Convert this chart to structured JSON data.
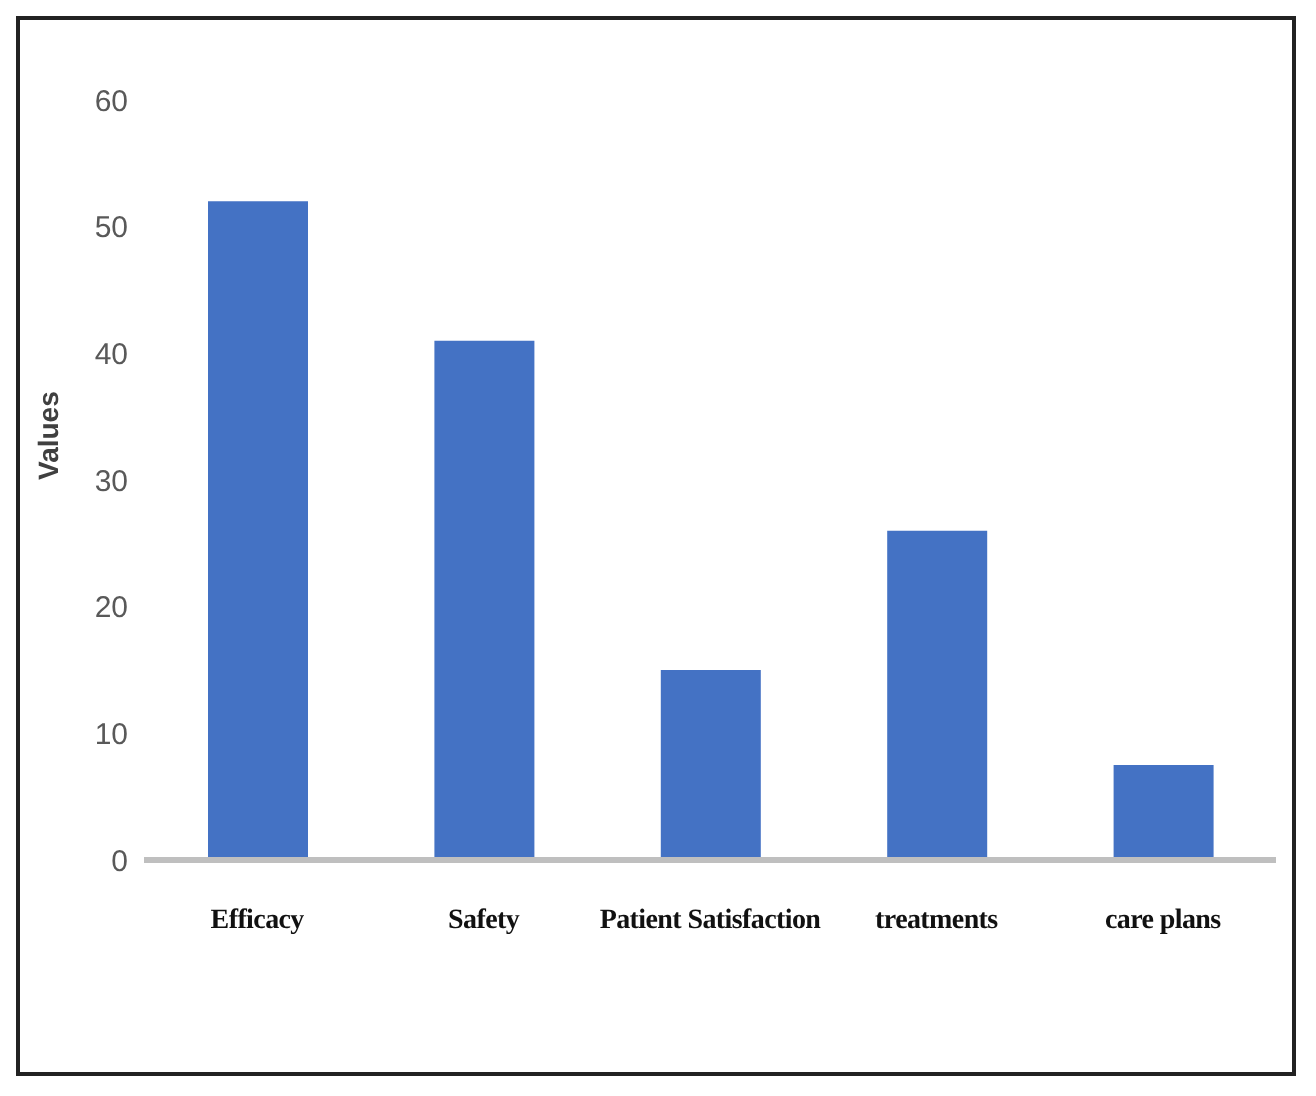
{
  "chart_data": {
    "type": "bar",
    "ylabel": "Values",
    "categories": [
      "Efficacy",
      "Safety",
      "Patient Satisfaction",
      "treatments",
      "care plans"
    ],
    "values": [
      52,
      41,
      15,
      26,
      7.5
    ],
    "color": "#4472c4",
    "ylim": [
      0,
      60
    ],
    "yticks": [
      0,
      10,
      20,
      30,
      40,
      50,
      60
    ],
    "grid": false
  }
}
